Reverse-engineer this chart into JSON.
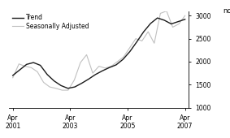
{
  "title": "",
  "ylabel": "no.",
  "ylim": [
    1000,
    3100
  ],
  "yticks": [
    1000,
    1500,
    2000,
    2500,
    3000
  ],
  "xtick_labels": [
    "Apr\n2001",
    "Apr\n2003",
    "Apr\n2005",
    "Apr\n2007"
  ],
  "xtick_positions": [
    0,
    8,
    16,
    24
  ],
  "trend": [
    1700,
    1820,
    1940,
    1980,
    1920,
    1720,
    1580,
    1480,
    1420,
    1450,
    1530,
    1620,
    1720,
    1800,
    1870,
    1930,
    2050,
    2220,
    2430,
    2650,
    2830,
    2950,
    2900,
    2820,
    2870,
    2920
  ],
  "seasonally_adjusted": [
    1650,
    1950,
    1900,
    1870,
    1780,
    1550,
    1450,
    1420,
    1380,
    1380,
    1600,
    1980,
    2150,
    1750,
    1900,
    1860,
    1900,
    2000,
    2100,
    2300,
    2500,
    2450,
    2650,
    2400,
    3050,
    3100,
    2750,
    2820,
    3000
  ],
  "trend_color": "#1a1a1a",
  "sa_color": "#c0c0c0",
  "trend_lw": 1.0,
  "sa_lw": 0.8,
  "legend_labels": [
    "Trend",
    "Seasonally Adjusted"
  ],
  "legend_fontsize": 5.5,
  "tick_fontsize": 5.5,
  "ylabel_fontsize": 6,
  "background_color": "#ffffff"
}
